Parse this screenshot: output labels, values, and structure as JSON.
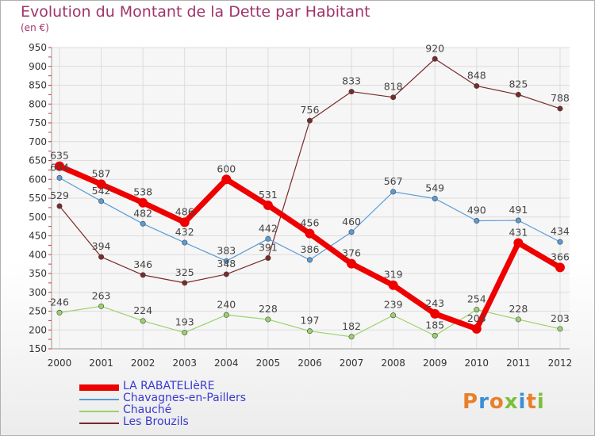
{
  "header": {
    "title": "Evolution du Montant de la Dette par Habitant",
    "subtitle": "(en €)"
  },
  "logo": {
    "text": "Proxiti",
    "colors": [
      "#e8802a",
      "#3a8fd6",
      "#e8802a",
      "#7bbf3a",
      "#3a8fd6",
      "#e8802a",
      "#7bbf3a"
    ]
  },
  "colors": {
    "title": "#a0336b",
    "legend_text": "#3a3ad0"
  },
  "chart_data": {
    "type": "line",
    "title": "Evolution du Montant de la Dette par Habitant",
    "subtitle": "(en €)",
    "x": [
      "2000",
      "2001",
      "2002",
      "2003",
      "2004",
      "2005",
      "2006",
      "2007",
      "2008",
      "2009",
      "2010",
      "2011",
      "2012"
    ],
    "ylim": [
      150,
      950
    ],
    "yticks": [
      150,
      200,
      250,
      300,
      350,
      400,
      450,
      500,
      550,
      600,
      650,
      700,
      750,
      800,
      850,
      900,
      950
    ],
    "grid": true,
    "legend_position": "bottom-left",
    "series": [
      {
        "name": "LA RABATELIèRE",
        "color": "#ee0000",
        "values": [
          635,
          587,
          538,
          486,
          600,
          531,
          456,
          376,
          319,
          243,
          203,
          431,
          366
        ]
      },
      {
        "name": "Chavagnes-en-Paillers",
        "color": "#5b9bd5",
        "values": [
          604,
          542,
          482,
          432,
          383,
          442,
          386,
          460,
          567,
          549,
          490,
          491,
          434
        ]
      },
      {
        "name": "Chauché",
        "color": "#9ad26a",
        "values": [
          246,
          263,
          224,
          193,
          240,
          228,
          197,
          182,
          239,
          185,
          254,
          228,
          203
        ]
      },
      {
        "name": "Les Brouzils",
        "color": "#7a2a2a",
        "values": [
          529,
          394,
          346,
          325,
          348,
          391,
          756,
          833,
          818,
          920,
          848,
          825,
          788
        ]
      }
    ]
  }
}
